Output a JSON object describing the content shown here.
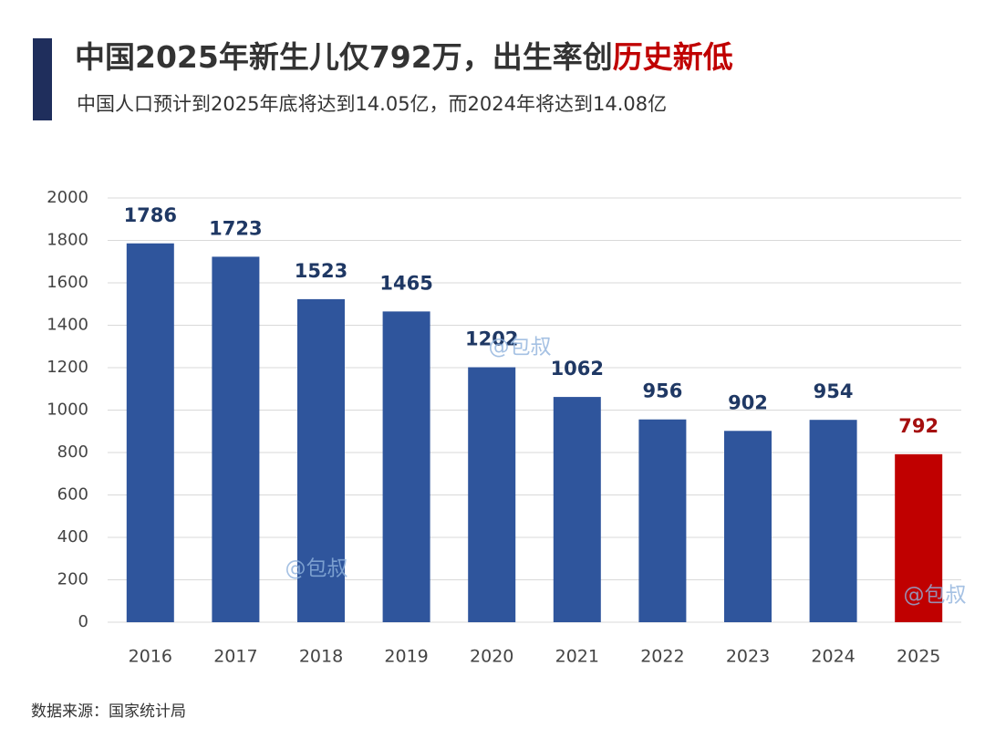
{
  "chart_data": {
    "type": "bar",
    "title": [
      "中国2025年新生儿仅792万，出生率创",
      "历史新低"
    ],
    "subtitle": "中国人口预计到2025年底将达到14.05亿，而2024年将达到14.08亿",
    "source": "数据来源：国家统计局",
    "watermarks": [
      "@包叔",
      "@包叔",
      "@包叔"
    ],
    "categories": [
      "2016",
      "2017",
      "2018",
      "2019",
      "2020",
      "2021",
      "2022",
      "2023",
      "2024",
      "2025"
    ],
    "values": [
      1786,
      1723,
      1523,
      1465,
      1202,
      1062,
      956,
      902,
      954,
      792
    ],
    "colors": [
      "#2f559c",
      "#2f559c",
      "#2f559c",
      "#2f559c",
      "#2f559c",
      "#2f559c",
      "#2f559c",
      "#2f559c",
      "#2f559c",
      "#c00000"
    ],
    "value_label_colors": [
      "#1f3864",
      "#1f3864",
      "#1f3864",
      "#1f3864",
      "#1f3864",
      "#1f3864",
      "#1f3864",
      "#1f3864",
      "#1f3864",
      "#a50f0f"
    ],
    "ylim": [
      0,
      2000
    ],
    "yticks": [
      0,
      200,
      400,
      600,
      800,
      1000,
      1200,
      1400,
      1600,
      1800,
      2000
    ],
    "grid": true
  }
}
